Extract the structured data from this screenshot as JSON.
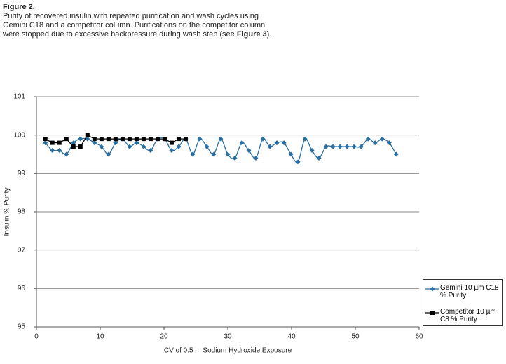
{
  "caption": {
    "label": "Figure 2.",
    "text": "Purity of recovered insulin with repeated purification and wash cycles using Gemini C18 and a competitor column. Purifications on the competitor column were stopped due to excessive backpressure during wash step (see ",
    "ref": "Figure 3",
    "end": ")."
  },
  "chart_data": {
    "type": "line",
    "x_label": "CV of 0.5 m Sodium Hydroxide Exposure",
    "y_label": "Insulin % Purity",
    "xlim": [
      0,
      60
    ],
    "xticks": [
      0,
      10,
      20,
      30,
      40,
      50,
      60
    ],
    "ylim": [
      95,
      101
    ],
    "yticks": [
      95,
      96,
      97,
      98,
      99,
      100,
      101
    ],
    "grid": true,
    "series": [
      {
        "name": "Gemini 10 µm C18 % Purity",
        "color": "#2a6fa0",
        "marker": "diamond",
        "smooth": true,
        "x": [
          1.4,
          2.5,
          3.6,
          4.7,
          5.8,
          6.9,
          8.0,
          9.1,
          10.2,
          11.3,
          12.4,
          13.5,
          14.6,
          15.7,
          16.8,
          17.9,
          19.0,
          20.1,
          21.2,
          22.3,
          23.4,
          24.5,
          25.6,
          26.7,
          27.8,
          28.9,
          30.0,
          31.1,
          32.2,
          33.3,
          34.4,
          35.5,
          36.6,
          37.7,
          38.8,
          39.9,
          41.0,
          42.1,
          43.2,
          44.3,
          45.4,
          46.5,
          47.6,
          48.7,
          49.8,
          50.9,
          52.0,
          53.1,
          54.2,
          55.3,
          56.4
        ],
        "values": [
          99.8,
          99.6,
          99.6,
          99.5,
          99.8,
          99.9,
          99.9,
          99.8,
          99.7,
          99.5,
          99.8,
          99.9,
          99.7,
          99.8,
          99.7,
          99.6,
          99.9,
          99.9,
          99.6,
          99.7,
          99.9,
          99.5,
          99.9,
          99.7,
          99.5,
          99.9,
          99.5,
          99.4,
          99.8,
          99.6,
          99.4,
          99.9,
          99.7,
          99.8,
          99.8,
          99.5,
          99.3,
          99.9,
          99.6,
          99.4,
          99.7,
          99.7,
          99.7,
          99.7,
          99.7,
          99.7,
          99.9,
          99.8,
          99.9,
          99.8,
          99.5
        ]
      },
      {
        "name": "Competitor 10 µm C8 % Purity",
        "color": "#000000",
        "marker": "square",
        "smooth": false,
        "x": [
          1.4,
          2.5,
          3.6,
          4.7,
          5.8,
          6.9,
          8.0,
          9.1,
          10.2,
          11.3,
          12.4,
          13.5,
          14.6,
          15.7,
          16.8,
          17.9,
          19.0,
          20.1,
          21.2,
          22.3,
          23.4
        ],
        "values": [
          99.9,
          99.8,
          99.8,
          99.9,
          99.7,
          99.7,
          100.0,
          99.9,
          99.9,
          99.9,
          99.9,
          99.9,
          99.9,
          99.9,
          99.9,
          99.9,
          99.9,
          99.9,
          99.8,
          99.9,
          99.9
        ]
      }
    ]
  }
}
